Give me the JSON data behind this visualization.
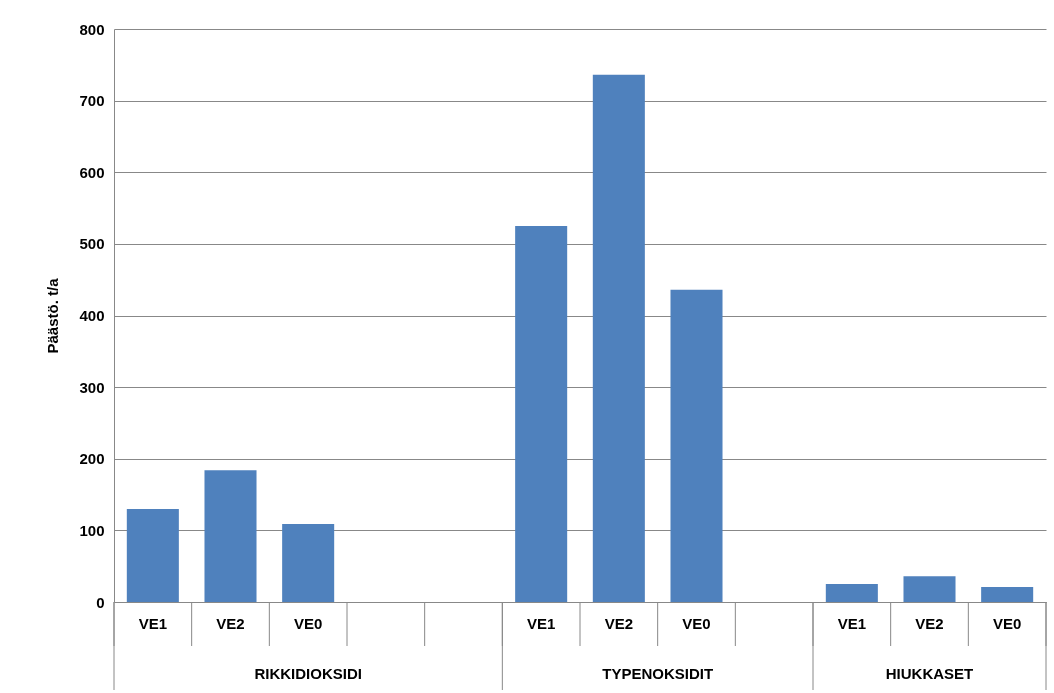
{
  "chart_data": {
    "type": "bar",
    "ylabel": "Päästö. t/a",
    "categories": [
      "VE1",
      "VE2",
      "VE0",
      null,
      null,
      "VE1",
      "VE2",
      "VE0",
      null,
      "VE1",
      "VE2",
      "VE0"
    ],
    "values": [
      130,
      184,
      109,
      null,
      null,
      525,
      736,
      436,
      null,
      25,
      36,
      21
    ],
    "color": "#4f81bd",
    "ylim": [
      0,
      800
    ],
    "yticks": [
      0,
      100,
      200,
      300,
      400,
      500,
      600,
      700,
      800
    ],
    "grid": "y",
    "annotations": [
      "RIKKIDIOKSIDI",
      "TYPENOKSIDIT",
      "HIUKKASET"
    ]
  }
}
